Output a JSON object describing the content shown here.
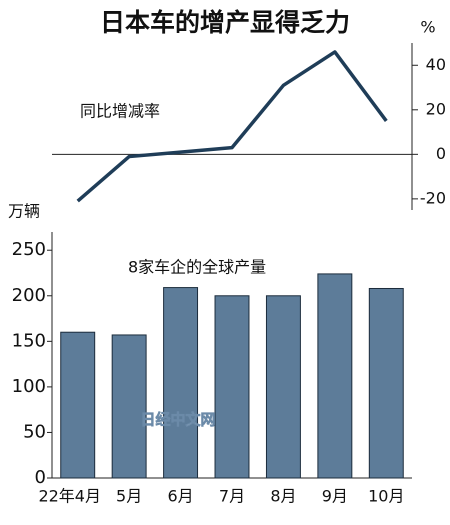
{
  "title": "日本车的增产显得乏力",
  "watermark": "日经中文网",
  "chart_data": [
    {
      "type": "line",
      "label": "同比增减率",
      "unit": "%",
      "color": "#1f3d58",
      "values": [
        -21,
        -1,
        1,
        3,
        31,
        46,
        15
      ],
      "ylim": [
        -25,
        50
      ],
      "yticks": [
        -20,
        0,
        20,
        40
      ]
    },
    {
      "type": "bar",
      "label": "8家车企的全球产量",
      "unit": "万辆",
      "color": "#5d7c99",
      "categories": [
        "22年4月",
        "5月",
        "6月",
        "7月",
        "8月",
        "9月",
        "10月"
      ],
      "values": [
        160,
        157,
        209,
        200,
        200,
        224,
        208
      ],
      "ylim": [
        0,
        270
      ],
      "yticks": [
        0,
        50,
        100,
        150,
        200,
        250
      ]
    }
  ]
}
